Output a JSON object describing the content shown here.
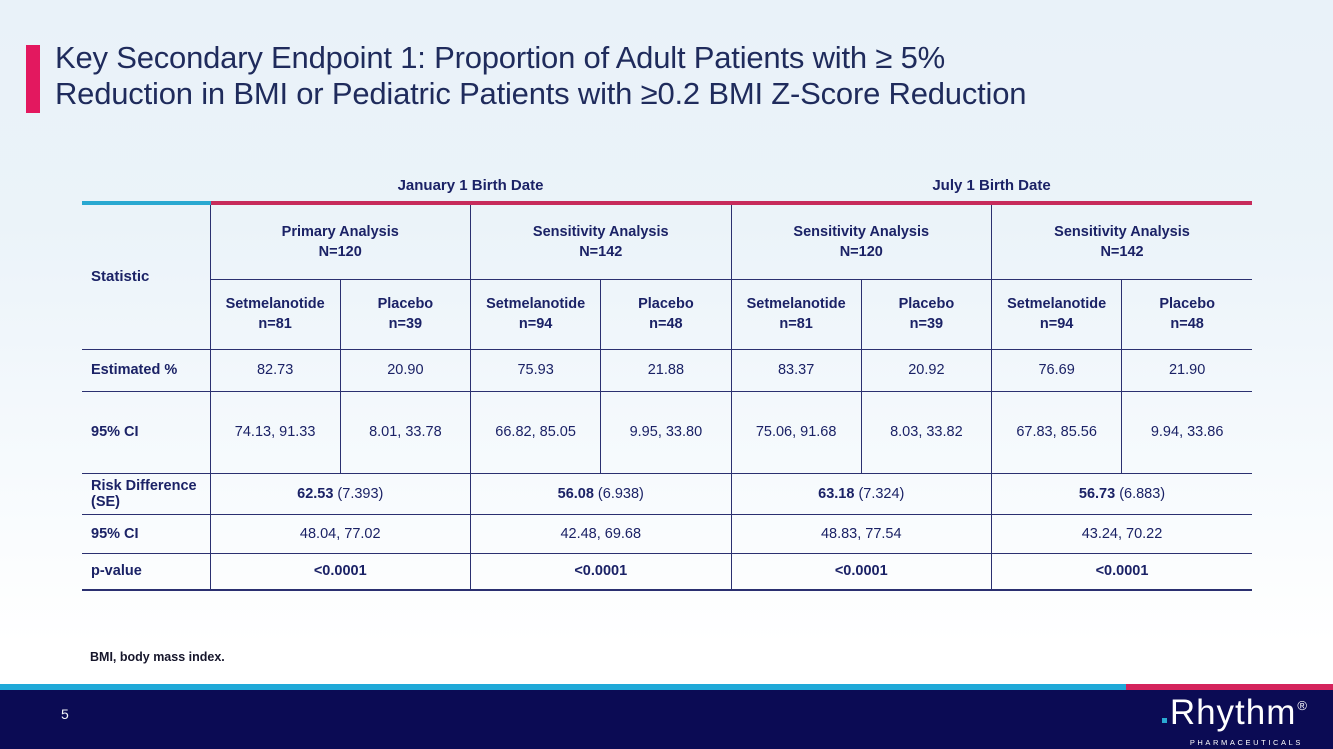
{
  "title": {
    "lines": [
      "Key Secondary Endpoint 1: Proportion of Adult Patients with ≥ 5%",
      "Reduction in BMI or Pediatric Patients with ≥0.2 BMI Z-Score Reduction"
    ]
  },
  "table": {
    "corner": "Statistic",
    "birth_groups": [
      {
        "label": "January 1 Birth Date"
      },
      {
        "label": "July 1 Birth Date"
      }
    ],
    "analyses": [
      {
        "title": "Primary Analysis",
        "n": "N=120"
      },
      {
        "title": "Sensitivity Analysis",
        "n": "N=142"
      },
      {
        "title": "Sensitivity Analysis",
        "n": "N=120"
      },
      {
        "title": "Sensitivity Analysis",
        "n": "N=142"
      }
    ],
    "arm_cols": [
      {
        "arm": "Setmelanotide",
        "n": "n=81"
      },
      {
        "arm": "Placebo",
        "n": "n=39"
      },
      {
        "arm": "Setmelanotide",
        "n": "n=94"
      },
      {
        "arm": "Placebo",
        "n": "n=48"
      },
      {
        "arm": "Setmelanotide",
        "n": "n=81"
      },
      {
        "arm": "Placebo",
        "n": "n=39"
      },
      {
        "arm": "Setmelanotide",
        "n": "n=94"
      },
      {
        "arm": "Placebo",
        "n": "n=48"
      }
    ],
    "row_estimated": {
      "label": "Estimated %",
      "values": [
        "82.73",
        "20.90",
        "75.93",
        "21.88",
        "83.37",
        "20.92",
        "76.69",
        "21.90"
      ]
    },
    "row_ci_arms": {
      "label": "95% CI",
      "values": [
        "74.13, 91.33",
        "8.01, 33.78",
        "66.82, 85.05",
        "9.95, 33.80",
        "75.06, 91.68",
        "8.03, 33.82",
        "67.83, 85.56",
        "9.94, 33.86"
      ]
    },
    "row_risk": {
      "label": "Risk Difference (SE)",
      "bold": [
        "62.53",
        "56.08",
        "63.18",
        "56.73"
      ],
      "se": [
        "(7.393)",
        "(6.938)",
        "(7.324)",
        "(6.883)"
      ]
    },
    "row_ci_groups": {
      "label": "95% CI",
      "values": [
        "48.04, 77.02",
        "42.48, 69.68",
        "48.83, 77.54",
        "43.24, 70.22"
      ]
    },
    "row_pvalue": {
      "label": "p-value",
      "values": [
        "<0.0001",
        "<0.0001",
        "<0.0001",
        "<0.0001"
      ]
    }
  },
  "footnote": "BMI, body mass index.",
  "footer": {
    "page_number": "5",
    "logo_text": "Rhythm",
    "reg_mark": "®",
    "logo_sub": "PHARMACEUTICALS"
  },
  "colors": {
    "accent_pink": "#e3185f",
    "table_line_red": "#c72b5b",
    "cyan": "#1fa9d8",
    "navy_text": "#1b2266",
    "footer_navy": "#0b0b54"
  }
}
